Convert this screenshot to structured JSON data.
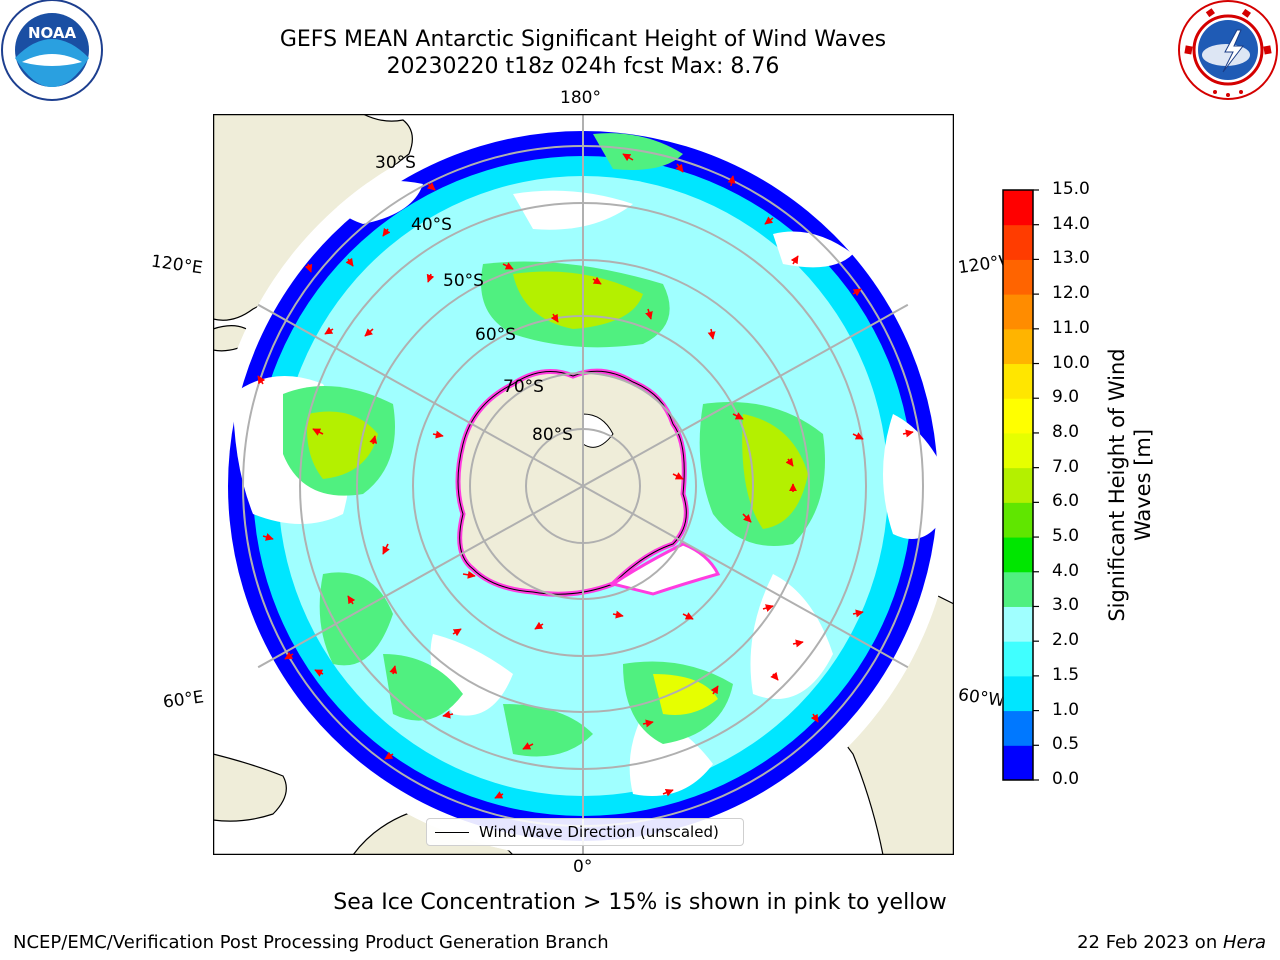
{
  "header": {
    "title_line1": "GEFS MEAN Antarctic Significant Height of Wind Waves",
    "title_line2": "20230220 t18z 024h fcst   Max: 8.76"
  },
  "logos": {
    "left": "noaa-logo",
    "left_text": "NOAA",
    "right": "nws-logo"
  },
  "map": {
    "projection": "south-polar-stereographic",
    "longitude_labels": {
      "top": "180°",
      "bottom": "0°",
      "upper_left": "120°E",
      "upper_right": "120°W",
      "lower_left": "60°E",
      "lower_right": "60°W"
    },
    "latitude_labels": [
      "30°S",
      "40°S",
      "50°S",
      "60°S",
      "70°S",
      "80°S"
    ],
    "legend_label": "Wind Wave Direction (unscaled)",
    "colors": {
      "land": "#efedd9",
      "ocean_calm": "#ffffff",
      "ice_edge": "#ff3ce0",
      "arrow": "#ff0000",
      "grid": "#b0b0b0"
    }
  },
  "colorbar": {
    "label_line1": "Significant Height of Wind",
    "label_line2": "Waves [m]",
    "ticks": [
      "0.0",
      "0.5",
      "1.0",
      "1.5",
      "2.0",
      "3.0",
      "4.0",
      "5.0",
      "6.0",
      "7.0",
      "8.0",
      "9.0",
      "10.0",
      "11.0",
      "12.0",
      "13.0",
      "14.0",
      "15.0"
    ],
    "colors": [
      "#0000ff",
      "#0078ff",
      "#00e6ff",
      "#40ffff",
      "#a0ffff",
      "#50f080",
      "#00e600",
      "#60e600",
      "#b4f000",
      "#e6ff00",
      "#ffff00",
      "#ffe600",
      "#ffb400",
      "#ff8c00",
      "#ff6400",
      "#ff3c00",
      "#ff0000"
    ]
  },
  "footer": {
    "note": "Sea Ice Concentration > 15% is shown in pink to yellow",
    "credit": "NCEP/EMC/Verification Post Processing Product Generation Branch",
    "date_prefix": "22 Feb 2023 on ",
    "date_machine": "Hera"
  }
}
